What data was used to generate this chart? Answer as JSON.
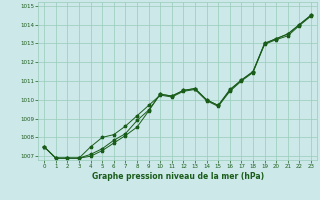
{
  "xlabel": "Graphe pression niveau de la mer (hPa)",
  "ylim": [
    1006.8,
    1015.2
  ],
  "xlim": [
    -0.5,
    23.5
  ],
  "yticks": [
    1007,
    1008,
    1009,
    1010,
    1011,
    1012,
    1013,
    1014,
    1015
  ],
  "xticks": [
    0,
    1,
    2,
    3,
    4,
    5,
    6,
    7,
    8,
    9,
    10,
    11,
    12,
    13,
    14,
    15,
    16,
    17,
    18,
    19,
    20,
    21,
    22,
    23
  ],
  "bg_color": "#cce8e8",
  "grid_color": "#99ccbb",
  "line_color": "#1a5c1a",
  "y_line1": [
    1007.5,
    1006.9,
    1006.9,
    1006.9,
    1007.0,
    1007.3,
    1007.7,
    1008.1,
    1008.55,
    1009.4,
    1010.3,
    1010.2,
    1010.5,
    1010.6,
    1010.0,
    1009.7,
    1010.5,
    1011.05,
    1011.5,
    1013.0,
    1013.25,
    1013.5,
    1014.0,
    1014.5
  ],
  "y_line2": [
    1007.5,
    1006.9,
    1006.9,
    1006.9,
    1007.1,
    1007.4,
    1007.85,
    1008.2,
    1008.9,
    1009.45,
    1010.3,
    1010.2,
    1010.5,
    1010.6,
    1010.0,
    1009.7,
    1010.55,
    1011.05,
    1011.5,
    1013.0,
    1013.25,
    1013.5,
    1014.0,
    1014.5
  ],
  "y_line3": [
    1007.5,
    1006.9,
    1006.9,
    1006.9,
    1007.5,
    1008.0,
    1008.15,
    1008.6,
    1009.15,
    1009.7,
    1010.25,
    1010.15,
    1010.45,
    1010.55,
    1009.95,
    1009.65,
    1010.45,
    1011.0,
    1011.45,
    1012.95,
    1013.2,
    1013.4,
    1013.95,
    1014.45
  ]
}
